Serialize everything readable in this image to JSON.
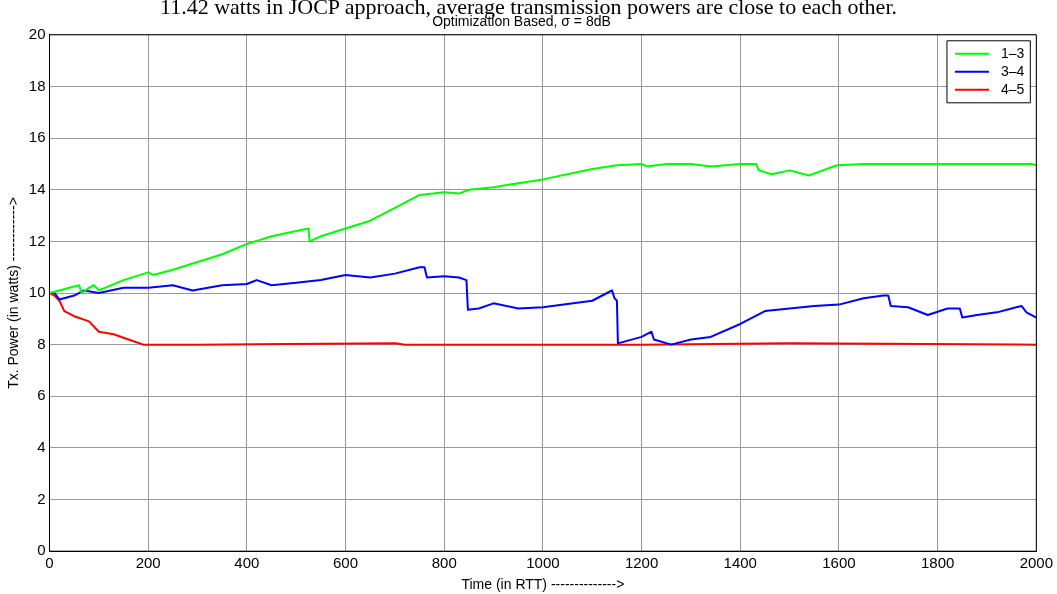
{
  "chart_data": {
    "type": "line",
    "title": "Optimization Based, σ = 8dB",
    "xlabel": "Time (in RTT) -------------->",
    "ylabel": "Tx. Power (in watts) ------------>",
    "annotations": [
      "11.42 watts in JOCP approach, average transmission powers are close to each other."
    ],
    "xlim": [
      0,
      2000
    ],
    "xticks": [
      0,
      200,
      400,
      600,
      800,
      1000,
      1200,
      1400,
      1600,
      1800,
      2000
    ],
    "ylim": [
      0,
      20
    ],
    "yticks": [
      0,
      2,
      4,
      6,
      8,
      10,
      12,
      14,
      16,
      18,
      20
    ],
    "grid": true,
    "legend": "top right",
    "marker": "none",
    "line_style": "solid",
    "series": [
      {
        "name": "1–3",
        "color": "#00ff00",
        "x": [
          0,
          20,
          40,
          60,
          65,
          80,
          90,
          100,
          150,
          200,
          210,
          250,
          300,
          350,
          400,
          450,
          500,
          525,
          527,
          550,
          600,
          650,
          700,
          750,
          800,
          830,
          850,
          900,
          1000,
          1100,
          1150,
          1200,
          1210,
          1250,
          1300,
          1340,
          1400,
          1432,
          1437,
          1463,
          1500,
          1539,
          1560,
          1596,
          1650,
          1800,
          1900,
          1990,
          2000
        ],
        "values": [
          10,
          10.1,
          10.2,
          10.3,
          10,
          10.2,
          10.3,
          10.1,
          10.5,
          10.8,
          10.7,
          10.9,
          11.2,
          11.5,
          11.9,
          12.2,
          12.4,
          12.5,
          12,
          12.2,
          12.5,
          12.8,
          13.3,
          13.8,
          13.9,
          13.85,
          14,
          14.1,
          14.4,
          14.8,
          14.95,
          15,
          14.9,
          15,
          15,
          14.9,
          15,
          15,
          14.76,
          14.6,
          14.75,
          14.55,
          14.7,
          14.95,
          15,
          15,
          15,
          15,
          14.95
        ]
      },
      {
        "name": "3–4",
        "color": "#0000ff",
        "x": [
          0,
          10,
          20,
          50,
          70,
          100,
          150,
          200,
          250,
          290,
          350,
          400,
          420,
          450,
          500,
          550,
          600,
          650,
          700,
          750,
          760,
          765,
          800,
          830,
          845,
          848,
          870,
          900,
          950,
          1000,
          1100,
          1130,
          1140,
          1145,
          1150,
          1152,
          1200,
          1220,
          1225,
          1260,
          1300,
          1340,
          1400,
          1450,
          1500,
          1550,
          1600,
          1650,
          1690,
          1700,
          1705,
          1740,
          1780,
          1820,
          1845,
          1850,
          1880,
          1920,
          1950,
          1970,
          1980,
          2000
        ],
        "values": [
          10,
          10,
          9.75,
          9.9,
          10.1,
          10,
          10.2,
          10.2,
          10.3,
          10.1,
          10.3,
          10.35,
          10.5,
          10.3,
          10.4,
          10.5,
          10.7,
          10.6,
          10.75,
          11,
          11,
          10.6,
          10.65,
          10.6,
          10.5,
          9.35,
          9.4,
          9.6,
          9.4,
          9.45,
          9.7,
          10,
          10.1,
          9.8,
          9.7,
          8.05,
          8.3,
          8.5,
          8.2,
          8,
          8.2,
          8.3,
          8.8,
          9.3,
          9.4,
          9.5,
          9.55,
          9.8,
          9.9,
          9.9,
          9.5,
          9.45,
          9.15,
          9.4,
          9.4,
          9.05,
          9.15,
          9.25,
          9.4,
          9.5,
          9.25,
          9.05
        ]
      },
      {
        "name": "4–5",
        "color": "#ff0000",
        "x": [
          0,
          10,
          20,
          30,
          50,
          80,
          100,
          130,
          160,
          190,
          300,
          700,
          720,
          1200,
          1500,
          2000
        ],
        "values": [
          10,
          9.9,
          9.7,
          9.3,
          9.1,
          8.9,
          8.5,
          8.4,
          8.2,
          8,
          8,
          8.05,
          8,
          8,
          8.05,
          8
        ]
      }
    ]
  }
}
